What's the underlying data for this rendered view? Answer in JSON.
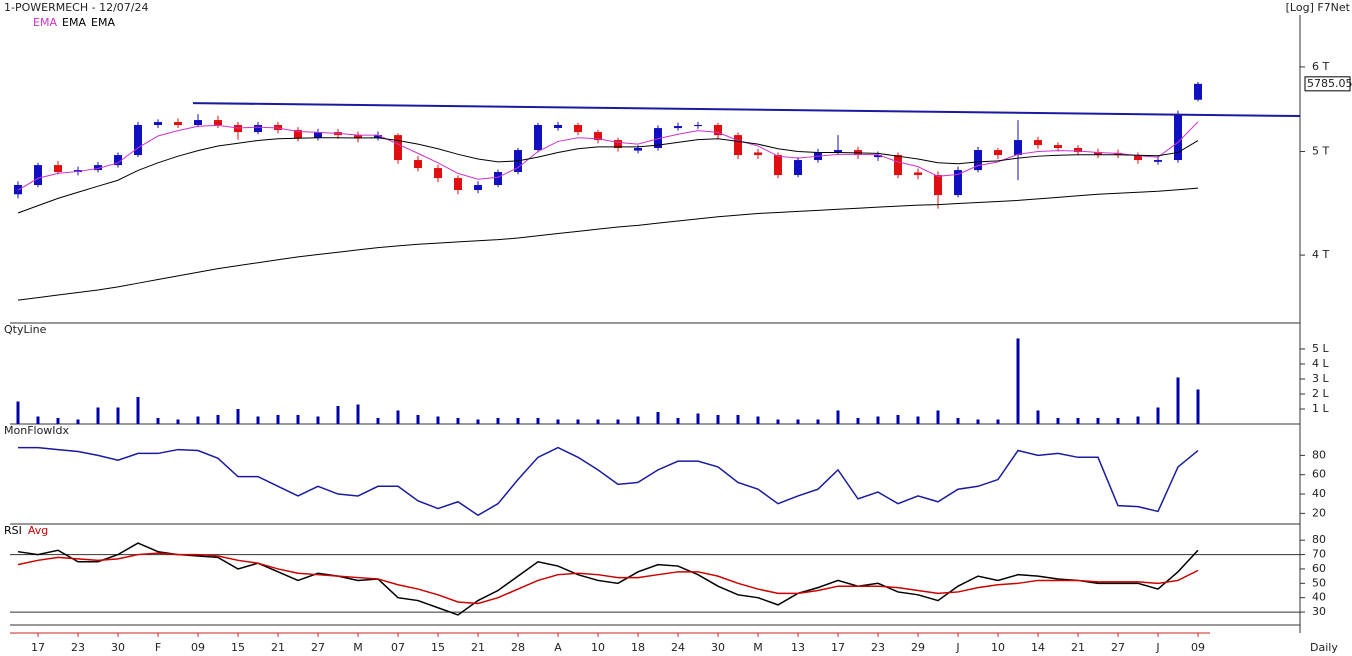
{
  "chart_data": [
    {
      "type": "candlestick",
      "title": "1-POWERMECH - 12/07/24",
      "scale_label": "[Log] F7Net",
      "period_label": "Daily",
      "log_scale": true,
      "up_color": "#1010c0",
      "down_color": "#e01010",
      "categories": [
        null,
        "17",
        null,
        "23",
        null,
        "30",
        null,
        "F",
        null,
        "09",
        null,
        "15",
        null,
        "21",
        null,
        "27",
        null,
        "M",
        null,
        "07",
        null,
        "15",
        null,
        "21",
        null,
        "28",
        null,
        "A",
        null,
        "10",
        null,
        "18",
        null,
        "24",
        null,
        "30",
        null,
        "M",
        null,
        "13",
        null,
        "17",
        null,
        "23",
        null,
        "29",
        null,
        "J",
        null,
        "10",
        null,
        "14",
        null,
        "21",
        null,
        "27",
        null,
        "J",
        null,
        "09"
      ],
      "open": [
        4560,
        4652,
        4856,
        4784,
        4804,
        4856,
        4962,
        5294,
        5328,
        5294,
        5351,
        5294,
        5214,
        5294,
        5237,
        5147,
        5214,
        5180,
        5147,
        5180,
        4909,
        4825,
        4722,
        4602,
        4652,
        4784,
        5016,
        5260,
        5294,
        5214,
        5125,
        5010,
        5038,
        5259,
        5282,
        5294,
        5180,
        4990,
        4962,
        4753,
        4909,
        4994,
        5016,
        4940,
        4962,
        4780,
        4753,
        4552,
        4804,
        5016,
        4962,
        5125,
        5070,
        5038,
        4994,
        4985,
        4962,
        4890,
        4909,
        5590
      ],
      "high": [
        4690,
        4880,
        4900,
        4840,
        4890,
        4990,
        5330,
        5360,
        5370,
        5420,
        5400,
        5330,
        5330,
        5330,
        5270,
        5250,
        5250,
        5220,
        5220,
        5200,
        4950,
        4860,
        4750,
        4690,
        4810,
        5040,
        5320,
        5330,
        5320,
        5240,
        5150,
        5070,
        5290,
        5320,
        5330,
        5320,
        5210,
        5030,
        4990,
        4940,
        5030,
        5180,
        5050,
        5000,
        4990,
        4820,
        4790,
        4840,
        5050,
        5040,
        5350,
        5160,
        5100,
        5070,
        5030,
        5020,
        4990,
        4950,
        5460,
        5810
      ],
      "low": [
        4520,
        4630,
        4760,
        4750,
        4780,
        4830,
        4940,
        5260,
        5260,
        5270,
        5260,
        5130,
        5190,
        5200,
        5110,
        5120,
        5140,
        5100,
        5120,
        4870,
        4790,
        4680,
        4560,
        4570,
        4630,
        4760,
        4990,
        5230,
        5180,
        5090,
        5000,
        4980,
        5010,
        5230,
        5250,
        5140,
        4920,
        4920,
        4720,
        4730,
        4880,
        4970,
        4920,
        4900,
        4720,
        4710,
        4420,
        4530,
        4780,
        4920,
        4700,
        5030,
        5000,
        4960,
        4930,
        4930,
        4870,
        4860,
        4880,
        5570
      ],
      "close": [
        4652,
        4856,
        4784,
        4804,
        4856,
        4962,
        5294,
        5328,
        5294,
        5351,
        5294,
        5214,
        5294,
        5237,
        5147,
        5214,
        5180,
        5147,
        5180,
        4909,
        4825,
        4722,
        4602,
        4652,
        4784,
        5016,
        5294,
        5294,
        5214,
        5125,
        5038,
        5038,
        5259,
        5282,
        5294,
        5180,
        4962,
        4962,
        4753,
        4909,
        4994,
        5016,
        4962,
        4962,
        4753,
        4753,
        4552,
        4804,
        5016,
        4962,
        5125,
        5070,
        5038,
        4994,
        4962,
        4962,
        4909,
        4909,
        5420,
        5785.05
      ],
      "series": [
        {
          "name": "EMA",
          "color": "#cc33cc",
          "values": [
            4600,
            4720,
            4770,
            4790,
            4820,
            4880,
            5040,
            5170,
            5230,
            5280,
            5290,
            5260,
            5270,
            5260,
            5220,
            5210,
            5200,
            5180,
            5180,
            5080,
            4980,
            4880,
            4770,
            4710,
            4730,
            4830,
            5000,
            5110,
            5150,
            5140,
            5100,
            5080,
            5140,
            5190,
            5230,
            5210,
            5120,
            5060,
            4950,
            4930,
            4950,
            4970,
            4970,
            4965,
            4890,
            4840,
            4740,
            4760,
            4850,
            4890,
            4970,
            5000,
            5010,
            5005,
            4990,
            4980,
            4955,
            4940,
            5100,
            5330
          ]
        },
        {
          "name": "EMA",
          "color": "#000000",
          "values": [
            4380,
            4450,
            4520,
            4580,
            4640,
            4700,
            4800,
            4880,
            4950,
            5010,
            5060,
            5090,
            5120,
            5140,
            5145,
            5150,
            5150,
            5148,
            5150,
            5120,
            5080,
            5030,
            4970,
            4920,
            4890,
            4900,
            4940,
            4990,
            5030,
            5050,
            5050,
            5050,
            5070,
            5100,
            5130,
            5140,
            5110,
            5080,
            5030,
            5000,
            4990,
            4990,
            4985,
            4980,
            4950,
            4920,
            4880,
            4870,
            4890,
            4900,
            4930,
            4950,
            4960,
            4965,
            4965,
            4965,
            4960,
            4955,
            4990,
            5120
          ]
        },
        {
          "name": "EMA",
          "color": "#000000",
          "values": [
            3630,
            3650,
            3670,
            3690,
            3710,
            3735,
            3765,
            3795,
            3825,
            3855,
            3885,
            3910,
            3935,
            3960,
            3985,
            4005,
            4025,
            4045,
            4065,
            4080,
            4095,
            4105,
            4115,
            4125,
            4135,
            4150,
            4170,
            4190,
            4210,
            4230,
            4250,
            4265,
            4285,
            4305,
            4325,
            4345,
            4360,
            4375,
            4385,
            4395,
            4405,
            4415,
            4425,
            4435,
            4445,
            4455,
            4460,
            4470,
            4480,
            4490,
            4500,
            4515,
            4530,
            4545,
            4560,
            4570,
            4580,
            4590,
            4605,
            4621
          ]
        }
      ],
      "trendline": [
        5550,
        5397
      ],
      "trendline_color": "#1a1aa0",
      "ylim": [
        3463,
        6638
      ],
      "yticks": [
        {
          "value": 4000,
          "label": "4 T"
        },
        {
          "value": 5000,
          "label": "5 T"
        },
        {
          "value": 6000,
          "label": "6 T"
        }
      ]
    },
    {
      "type": "bar",
      "title": "QtyLine",
      "color": "#0000aa",
      "values": [
        1.5,
        0.5,
        0.4,
        0.3,
        1.1,
        1.1,
        1.8,
        0.4,
        0.3,
        0.5,
        0.6,
        1.0,
        0.5,
        0.6,
        0.6,
        0.5,
        1.2,
        1.3,
        0.4,
        0.9,
        0.6,
        0.5,
        0.4,
        0.3,
        0.4,
        0.4,
        0.4,
        0.3,
        0.3,
        0.3,
        0.3,
        0.5,
        0.8,
        0.4,
        0.7,
        0.6,
        0.6,
        0.5,
        0.3,
        0.3,
        0.3,
        0.9,
        0.4,
        0.5,
        0.6,
        0.5,
        0.9,
        0.4,
        0.3,
        0.3,
        5.7,
        0.9,
        0.4,
        0.4,
        0.4,
        0.4,
        0.5,
        1.1,
        3.1,
        2.3
      ],
      "ylim": [
        0,
        5.73
      ],
      "yticks": [
        {
          "value": 1,
          "label": "1 L"
        },
        {
          "value": 2,
          "label": "2 L"
        },
        {
          "value": 3,
          "label": "3 L"
        },
        {
          "value": 4,
          "label": "4 L"
        },
        {
          "value": 5,
          "label": "5 L"
        }
      ]
    },
    {
      "type": "line",
      "title": "MonFlowIdx",
      "series": [
        {
          "color": "#1a1aa0",
          "values": [
            88,
            88,
            86,
            84,
            80,
            75,
            82,
            82,
            86,
            85,
            77,
            58,
            58,
            48,
            38,
            48,
            40,
            38,
            48,
            48,
            33,
            25,
            32,
            18,
            30,
            55,
            78,
            88,
            78,
            65,
            50,
            52,
            65,
            74,
            74,
            68,
            52,
            45,
            30,
            38,
            45,
            65,
            35,
            42,
            30,
            38,
            32,
            45,
            48,
            55,
            85,
            80,
            82,
            78,
            78,
            28,
            27,
            22,
            68,
            85
          ]
        }
      ],
      "ylim": [
        9,
        99
      ],
      "yticks": [
        20,
        40,
        60,
        80
      ]
    },
    {
      "type": "line",
      "series": [
        {
          "name": "RSI",
          "color": "#000000",
          "values": [
            72,
            70,
            73,
            65,
            65,
            70,
            78,
            72,
            70,
            69,
            68,
            60,
            64,
            58,
            52,
            57,
            55,
            52,
            53,
            40,
            38,
            33,
            28,
            38,
            45,
            55,
            65,
            62,
            56,
            52,
            50,
            58,
            63,
            62,
            56,
            48,
            42,
            40,
            35,
            43,
            47,
            52,
            48,
            50,
            44,
            42,
            38,
            48,
            55,
            52,
            56,
            55,
            53,
            52,
            50,
            50,
            50,
            46,
            58,
            73
          ]
        },
        {
          "name": "Avg",
          "color": "#cc0000",
          "values": [
            63,
            66,
            68,
            67,
            66,
            67,
            70,
            71,
            70,
            70,
            69,
            66,
            64,
            60,
            57,
            56,
            55,
            54,
            53,
            49,
            46,
            42,
            37,
            36,
            40,
            46,
            52,
            56,
            57,
            56,
            54,
            54,
            56,
            58,
            58,
            55,
            50,
            46,
            43,
            43,
            45,
            48,
            48,
            48,
            47,
            45,
            43,
            44,
            47,
            49,
            50,
            52,
            52,
            52,
            51,
            51,
            51,
            50,
            52,
            59
          ]
        }
      ],
      "hlines": [
        70,
        30
      ],
      "ylim": [
        21,
        85
      ],
      "yticks": [
        30,
        40,
        50,
        60,
        70,
        80
      ]
    }
  ]
}
